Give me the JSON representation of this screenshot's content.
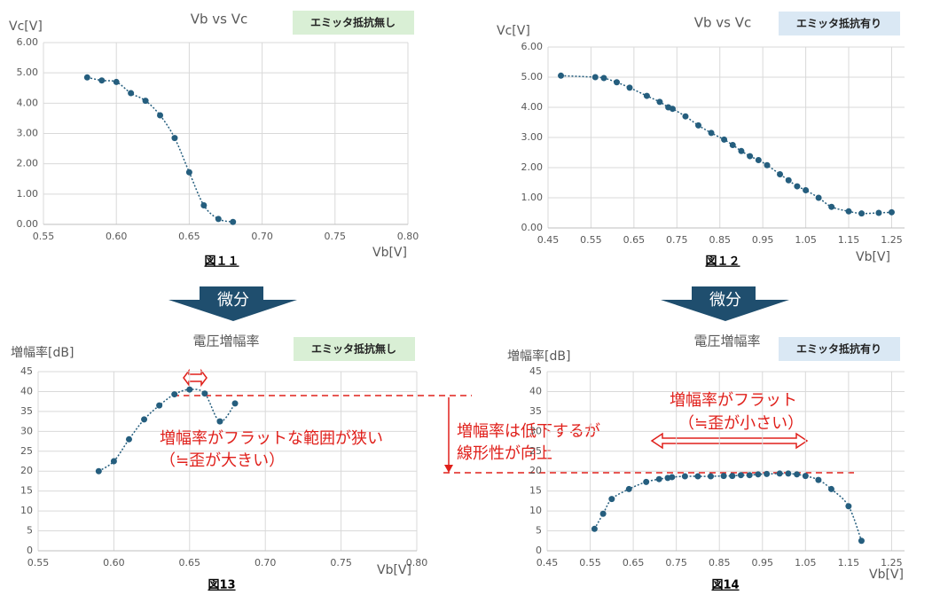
{
  "chart_data": [
    {
      "type": "scatter",
      "title": "Vb vs Vc",
      "badge": "エミッタ抵抗無し",
      "caption": "図１１",
      "xlabel": "Vb[V]",
      "ylabel": "Vc[V]",
      "grid": true,
      "xlim": [
        0.55,
        0.8
      ],
      "xticks": [
        {
          "value": 0.55,
          "label": "0.55"
        },
        {
          "value": 0.6,
          "label": "0.60"
        },
        {
          "value": 0.65,
          "label": "0.65"
        },
        {
          "value": 0.7,
          "label": "0.70"
        },
        {
          "value": 0.75,
          "label": "0.75"
        },
        {
          "value": 0.8,
          "label": "0.80"
        }
      ],
      "ylim": [
        0,
        6
      ],
      "yticks": [
        {
          "value": 0,
          "label": "0.00"
        },
        {
          "value": 1,
          "label": "1.00"
        },
        {
          "value": 2,
          "label": "2.00"
        },
        {
          "value": 3,
          "label": "3.00"
        },
        {
          "value": 4,
          "label": "4.00"
        },
        {
          "value": 5,
          "label": "5.00"
        },
        {
          "value": 6,
          "label": "6.00"
        }
      ],
      "color": "#255e7e",
      "x": [
        0.58,
        0.59,
        0.6,
        0.61,
        0.62,
        0.63,
        0.64,
        0.65,
        0.66,
        0.67,
        0.68
      ],
      "values": [
        4.85,
        4.75,
        4.7,
        4.33,
        4.08,
        3.6,
        2.85,
        1.72,
        0.63,
        0.18,
        0.08
      ]
    },
    {
      "type": "scatter",
      "title": "Vb vs Vc",
      "badge": "エミッタ抵抗有り",
      "caption": "図１２",
      "xlabel": "Vb[V]",
      "ylabel": "Vc[V]",
      "grid": true,
      "xlim": [
        0.45,
        1.28
      ],
      "xticks": [
        {
          "value": 0.45,
          "label": "0.45"
        },
        {
          "value": 0.55,
          "label": "0.55"
        },
        {
          "value": 0.65,
          "label": "0.65"
        },
        {
          "value": 0.75,
          "label": "0.75"
        },
        {
          "value": 0.85,
          "label": "0.85"
        },
        {
          "value": 0.95,
          "label": "0.95"
        },
        {
          "value": 1.05,
          "label": "1.05"
        },
        {
          "value": 1.15,
          "label": "1.15"
        },
        {
          "value": 1.25,
          "label": "1.25"
        }
      ],
      "ylim": [
        0,
        6
      ],
      "yticks": [
        {
          "value": 0,
          "label": "0.00"
        },
        {
          "value": 1,
          "label": "1.00"
        },
        {
          "value": 2,
          "label": "2.00"
        },
        {
          "value": 3,
          "label": "3.00"
        },
        {
          "value": 4,
          "label": "4.00"
        },
        {
          "value": 5,
          "label": "5.00"
        },
        {
          "value": 6,
          "label": "6.00"
        }
      ],
      "color": "#255e7e",
      "x": [
        0.48,
        0.56,
        0.58,
        0.61,
        0.64,
        0.68,
        0.71,
        0.73,
        0.74,
        0.77,
        0.8,
        0.83,
        0.86,
        0.88,
        0.9,
        0.92,
        0.94,
        0.96,
        0.99,
        1.01,
        1.03,
        1.05,
        1.08,
        1.11,
        1.15,
        1.18,
        1.22,
        1.25
      ],
      "values": [
        5.05,
        5.0,
        4.97,
        4.83,
        4.65,
        4.38,
        4.18,
        4.0,
        3.95,
        3.7,
        3.4,
        3.15,
        2.93,
        2.75,
        2.55,
        2.38,
        2.25,
        2.08,
        1.78,
        1.58,
        1.38,
        1.25,
        1.0,
        0.7,
        0.55,
        0.48,
        0.5,
        0.52
      ]
    },
    {
      "type": "scatter",
      "title": "電圧増幅率",
      "badge": "エミッタ抵抗無し",
      "caption": "図13",
      "xlabel": "Vb[V]",
      "ylabel": "増幅率[dB]",
      "grid": true,
      "annotations": [
        "増幅率がフラットな範囲が狭い",
        "（≒歪が大きい）"
      ],
      "xlim": [
        0.55,
        0.8
      ],
      "xticks": [
        {
          "value": 0.55,
          "label": "0.55"
        },
        {
          "value": 0.6,
          "label": "0.60"
        },
        {
          "value": 0.65,
          "label": "0.65"
        },
        {
          "value": 0.7,
          "label": "0.70"
        },
        {
          "value": 0.75,
          "label": "0.75"
        },
        {
          "value": 0.8,
          "label": "0.80"
        }
      ],
      "ylim": [
        0,
        45
      ],
      "yticks": [
        0,
        5,
        10,
        15,
        20,
        25,
        30,
        35,
        40,
        45
      ],
      "color": "#255e7e",
      "x": [
        0.59,
        0.6,
        0.61,
        0.62,
        0.63,
        0.64,
        0.65,
        0.66,
        0.67,
        0.68
      ],
      "values": [
        20,
        22.5,
        28,
        33,
        36.5,
        39.3,
        40.5,
        39.5,
        32.5,
        37
      ]
    },
    {
      "type": "scatter",
      "title": "電圧増幅率",
      "badge": "エミッタ抵抗有り",
      "caption": "図14",
      "xlabel": "Vb[V]",
      "ylabel": "増幅率[dB]",
      "grid": true,
      "annotations": [
        "増幅率がフラット",
        "（≒歪が小さい）"
      ],
      "xlim": [
        0.45,
        1.28
      ],
      "xticks": [
        {
          "value": 0.45,
          "label": "0.45"
        },
        {
          "value": 0.55,
          "label": "0.55"
        },
        {
          "value": 0.65,
          "label": "0.65"
        },
        {
          "value": 0.75,
          "label": "0.75"
        },
        {
          "value": 0.85,
          "label": "0.85"
        },
        {
          "value": 0.95,
          "label": "0.95"
        },
        {
          "value": 1.05,
          "label": "1.05"
        },
        {
          "value": 1.15,
          "label": "1.15"
        },
        {
          "value": 1.25,
          "label": "1.25"
        }
      ],
      "ylim": [
        0,
        45
      ],
      "yticks": [
        0,
        5,
        10,
        15,
        20,
        25,
        30,
        35,
        40,
        45
      ],
      "color": "#255e7e",
      "x": [
        0.56,
        0.58,
        0.6,
        0.64,
        0.68,
        0.71,
        0.73,
        0.74,
        0.77,
        0.8,
        0.83,
        0.86,
        0.88,
        0.9,
        0.92,
        0.94,
        0.96,
        0.99,
        1.01,
        1.03,
        1.05,
        1.08,
        1.11,
        1.15,
        1.18
      ],
      "values": [
        5.5,
        9.3,
        13,
        15.5,
        17.3,
        18,
        18.3,
        18.5,
        18.7,
        18.7,
        18.7,
        18.8,
        18.8,
        19.0,
        19.0,
        19.2,
        19.3,
        19.4,
        19.4,
        19.2,
        18.8,
        17.8,
        15.5,
        11.2,
        2.5
      ]
    }
  ],
  "arrow_labels": [
    "微分",
    "微分"
  ],
  "notes": [
    "増幅率は低下するが",
    "線形性が向上"
  ]
}
